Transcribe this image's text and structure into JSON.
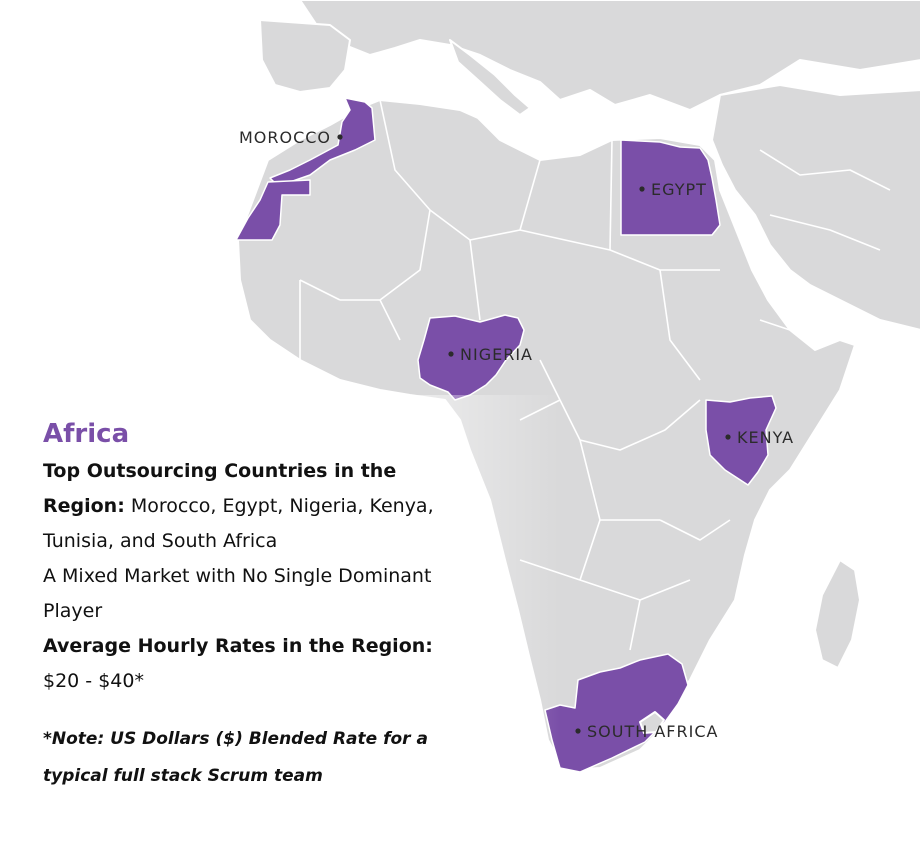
{
  "map": {
    "colors": {
      "land": "#d9d9da",
      "highlight": "#7a4fa8",
      "water": "#ffffff",
      "label": "#2b2b2b"
    },
    "countries": [
      {
        "name": "MOROCCO"
      },
      {
        "name": "EGYPT"
      },
      {
        "name": "NIGERIA"
      },
      {
        "name": "KENYA"
      },
      {
        "name": "SOUTH AFRICA"
      }
    ]
  },
  "info": {
    "region": "Africa",
    "top_countries_label": "Top Outsourcing Countries in the Region:",
    "top_countries_value": "Morocco, Egypt, Nigeria, Kenya, Tunisia, and South Africa",
    "market": "A Mixed Market with No Single Dominant Player",
    "rates_label": "Average Hourly Rates in the Region:",
    "rates_value": "$20 - $40*",
    "note": "*Note: US Dollars ($) Blended Rate for a typical full stack Scrum team"
  }
}
